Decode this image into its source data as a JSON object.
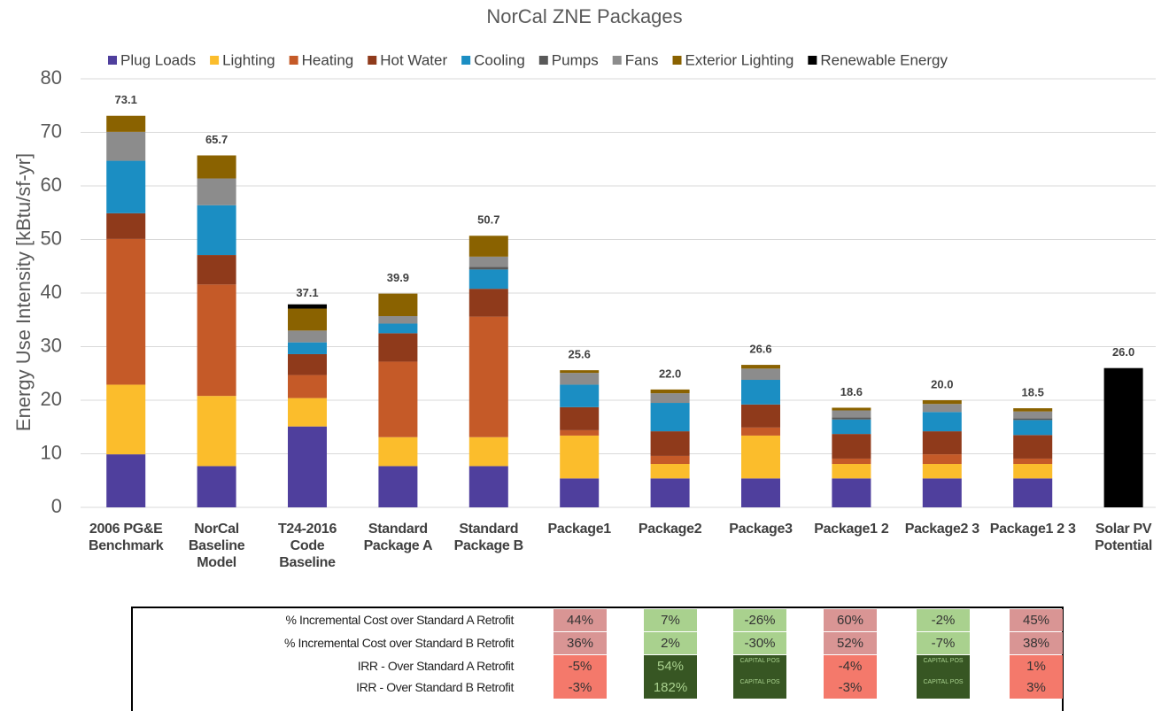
{
  "chart_data": {
    "type": "stacked_bar",
    "title": "NorCal ZNE Packages",
    "y_label": "Energy Use Intensity [kBtu/sf-yr]",
    "categories": [
      "2006 PG&E Benchmark",
      "NorCal Baseline Model",
      "T24-2016 Code Baseline",
      "Standard Package A",
      "Standard Package B",
      "Package1",
      "Package2",
      "Package3",
      "Package1 2",
      "Package2 3",
      "Package1 2 3",
      "Solar PV Potential"
    ],
    "series": [
      {
        "name": "Plug Loads",
        "color": "#4f3f9d",
        "values": [
          9.9,
          7.7,
          15.1,
          7.7,
          7.7,
          5.4,
          5.4,
          5.4,
          5.4,
          5.4,
          5.4,
          0
        ]
      },
      {
        "name": "Lighting",
        "color": "#fbbd2c",
        "values": [
          13,
          13.1,
          5.3,
          5.4,
          5.4,
          8,
          2.7,
          8,
          2.7,
          2.7,
          2.7,
          0
        ]
      },
      {
        "name": "Heating",
        "color": "#c55a28",
        "values": [
          27.2,
          20.8,
          4.3,
          14.1,
          22.5,
          1,
          1.5,
          1.5,
          1,
          1.8,
          1,
          0
        ]
      },
      {
        "name": "Hot Water",
        "color": "#8f3a1b",
        "values": [
          4.8,
          5.5,
          3.9,
          5.3,
          5.2,
          4.3,
          4.6,
          4.3,
          4.6,
          4.3,
          4.4,
          0
        ]
      },
      {
        "name": "Cooling",
        "color": "#1b8ec3",
        "values": [
          9.8,
          9.3,
          2.2,
          1.8,
          3.6,
          4.2,
          5.3,
          4.6,
          2.7,
          3.6,
          2.8,
          0
        ]
      },
      {
        "name": "Pumps",
        "color": "#595959",
        "values": [
          0,
          0,
          0,
          0,
          0.5,
          0,
          0,
          0,
          0.4,
          0,
          0.3,
          0
        ]
      },
      {
        "name": "Fans",
        "color": "#8c8c8c",
        "values": [
          5.4,
          5,
          2.2,
          1.4,
          1.9,
          2.2,
          1.8,
          2.1,
          1.3,
          1.5,
          1.3,
          0
        ]
      },
      {
        "name": "Exterior Lighting",
        "color": "#8a6200",
        "values": [
          3,
          4.3,
          4.1,
          4.2,
          3.9,
          0.5,
          0.7,
          0.7,
          0.5,
          0.7,
          0.6,
          0
        ]
      },
      {
        "name": "Renewable Energy",
        "color": "#000000",
        "values": [
          0,
          0,
          0.8,
          0,
          0,
          0,
          0,
          0,
          0,
          0,
          0,
          26
        ]
      }
    ],
    "totals": {
      "values": [
        73.1,
        65.7,
        37.1,
        39.9,
        50.7,
        25.6,
        22,
        26.6,
        18.6,
        20,
        18.5,
        26
      ],
      "value_labels": [
        "73.1",
        "65.7",
        "37.1",
        "39.9",
        "50.7",
        "25.6",
        "22.0",
        "26.6",
        "18.6",
        "20.0",
        "18.5",
        "26.0"
      ]
    },
    "ylim": [
      0,
      80
    ],
    "yticks": [
      0,
      10,
      20,
      30,
      40,
      50,
      60,
      70,
      80
    ],
    "grid": true,
    "legend": "top"
  },
  "table": {
    "rows": [
      {
        "label": "% Incremental Cost over Standard A Retrofit",
        "cells": [
          {
            "text": "44%",
            "color": "#d99594"
          },
          {
            "text": "7%",
            "color": "#a9d18e"
          },
          {
            "text": "-26%",
            "color": "#a9d18e"
          },
          {
            "text": "60%",
            "color": "#d99594"
          },
          {
            "text": "-2%",
            "color": "#a9d18e"
          },
          {
            "text": "45%",
            "color": "#d99594"
          }
        ]
      },
      {
        "label": "% Incremental Cost over Standard B Retrofit",
        "cells": [
          {
            "text": "36%",
            "color": "#d99594"
          },
          {
            "text": "2%",
            "color": "#a9d18e"
          },
          {
            "text": "-30%",
            "color": "#a9d18e"
          },
          {
            "text": "52%",
            "color": "#d99594"
          },
          {
            "text": "-7%",
            "color": "#a9d18e"
          },
          {
            "text": "38%",
            "color": "#d99594"
          }
        ]
      },
      {
        "label": "IRR - Over Standard A Retrofit",
        "cells": [
          {
            "text": "-5%",
            "color": "#f4796b"
          },
          {
            "text": "54%",
            "color": "#375623"
          },
          {
            "text": "CAPITAL POS",
            "color": "#375623"
          },
          {
            "text": "-4%",
            "color": "#f4796b"
          },
          {
            "text": "CAPITAL POS",
            "color": "#375623"
          },
          {
            "text": "1%",
            "color": "#f4796b"
          }
        ]
      },
      {
        "label": "IRR - Over Standard B Retrofit",
        "cells": [
          {
            "text": "-3%",
            "color": "#f4796b"
          },
          {
            "text": "182%",
            "color": "#375623"
          },
          {
            "text": "CAPITAL POS",
            "color": "#375623"
          },
          {
            "text": "-3%",
            "color": "#f4796b"
          },
          {
            "text": "CAPITAL POS",
            "color": "#375623"
          },
          {
            "text": "3%",
            "color": "#f4796b"
          }
        ]
      }
    ]
  }
}
